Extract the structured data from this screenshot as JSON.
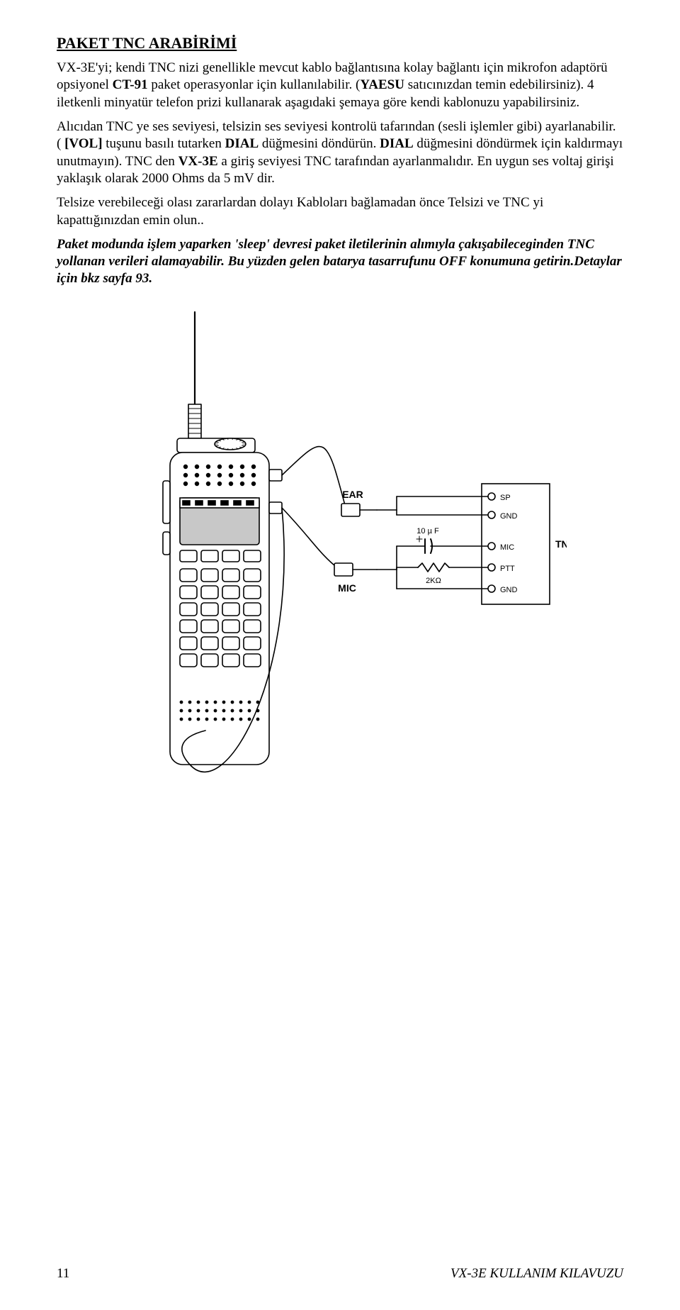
{
  "title": "PAKET TNC ARABİRİMİ",
  "paragraphs": {
    "p1_a": "VX-3E'yi; kendi TNC nizi genellikle mevcut kablo bağlantısına kolay bağlantı için mikrofon adaptörü opsiyonel ",
    "p1_b": "CT-91",
    "p1_c": " paket operasyonlar için kullanılabilir. (",
    "p1_d": "YAESU",
    "p1_e": " satıcınızdan temin edebilirsiniz). 4 iletkenli minyatür telefon prizi kullanarak aşagıdaki şemaya göre kendi kablonuzu yapabilirsiniz.",
    "p2_a": "Alıcıdan TNC ye ses seviyesi, telsizin ses seviyesi kontrolü tafarından (sesli işlemler gibi) ayarlanabilir. ( ",
    "p2_b": "[VOL]",
    "p2_c": " tuşunu basılı tutarken ",
    "p2_d": "DIAL",
    "p2_e": " düğmesini döndürün. ",
    "p2_f": "DIAL",
    "p2_g": " düğmesini döndürmek için kaldırmayı unutmayın). TNC den ",
    "p2_h": "VX-3E",
    "p2_i": " a giriş seviyesi TNC tarafından ayarlanmalıdır. En uygun ses voltaj girişi yaklaşık olarak 2000 Ohms da 5 mV dir.",
    "p3": "Telsize verebileceği olası zararlardan dolayı Kabloları bağlamadan önce Telsizi ve TNC yi kapattığınızdan emin olun..",
    "p4": "Paket modunda işlem yaparken 'sleep' devresi paket iletilerinin alımıyla çakışabileceginden TNC yollanan verileri alamayabilir. Bu yüzden gelen batarya tasarrufunu OFF konumuna getirin.Detaylar için bkz sayfa 93."
  },
  "diagram": {
    "labels": {
      "ear": "EAR",
      "mic": "MIC",
      "tnc": "TNC",
      "sp": "SP",
      "gnd": "GND",
      "micPin": "MIC",
      "ptt": "PTT",
      "cap": "10 µ F",
      "res": "2KΩ"
    },
    "colors": {
      "stroke": "#000000",
      "fill_white": "#ffffff",
      "fill_display": "#c8c8c8"
    },
    "stroke_width": 1.6,
    "font_family": "Arial, Helvetica, sans-serif",
    "font_size_label": 14,
    "font_size_small": 11
  },
  "footer": {
    "page": "11",
    "manual": "VX-3E KULLANIM KILAVUZU"
  }
}
